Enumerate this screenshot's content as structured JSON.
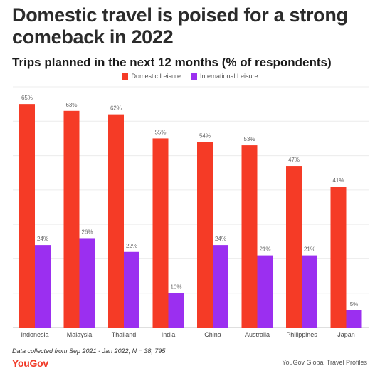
{
  "title": "Domestic travel is poised for a strong comeback in 2022",
  "footer": {
    "source": "Data collected from Sep 2021 - Jan 2022; N = 38, 795",
    "logo": "YouGov",
    "credit": "YouGov Global Travel Profiles"
  },
  "colors": {
    "domestic": "#f53b26",
    "international": "#9b2ff0"
  },
  "chart_data": {
    "type": "bar",
    "title": "Trips planned in the next 12 months (% of respondents)",
    "categories": [
      "Indonesia",
      "Malaysia",
      "Thailand",
      "India",
      "China",
      "Australia",
      "Philippines",
      "Japan"
    ],
    "series": [
      {
        "name": "Domestic Leisure",
        "values": [
          65,
          63,
          62,
          55,
          54,
          53,
          47,
          41
        ]
      },
      {
        "name": "International Leisure",
        "values": [
          24,
          26,
          22,
          10,
          24,
          21,
          21,
          5
        ]
      }
    ],
    "value_suffix": "%",
    "ylim": [
      0,
      70
    ],
    "grid": true,
    "legend": "top-center"
  }
}
